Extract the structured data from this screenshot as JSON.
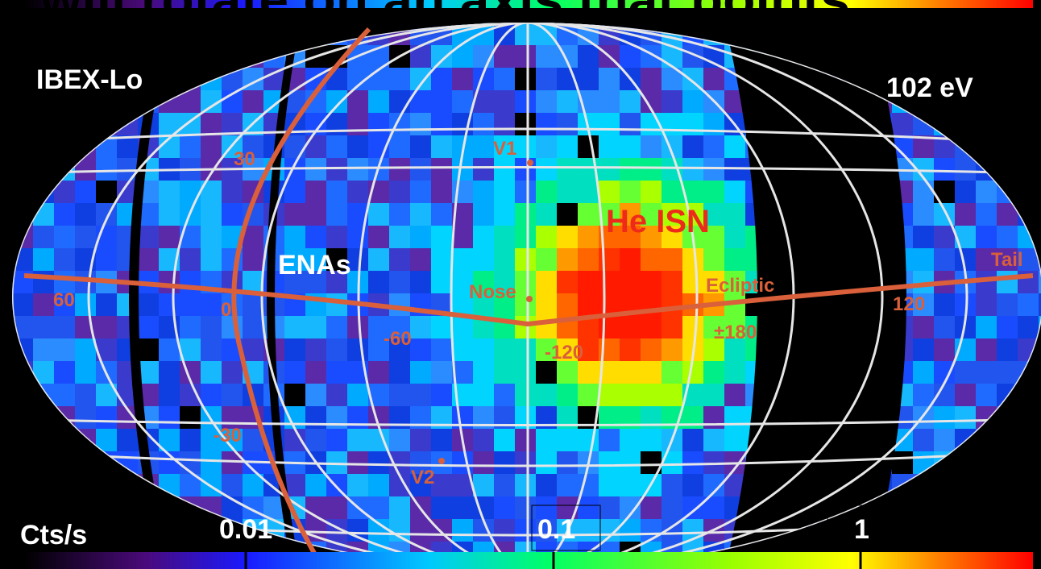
{
  "caption": "e will rotate on an axis that points",
  "map": {
    "instrument": "IBEX-Lo",
    "energy": "102 eV",
    "population": "ENAs",
    "signal": "He ISN",
    "markers": {
      "v1": "V1",
      "v2": "V2",
      "nose": "Nose",
      "ecliptic": "Ecliptic",
      "tail": "Tail"
    },
    "coordinates": {
      "lat_north": "30",
      "lat_south": "-30",
      "lon_60": "60",
      "lon_0": "0",
      "lon_m60": "-60",
      "lon_m120": "-120",
      "lon_180": "±180",
      "lon_120": "120"
    }
  },
  "colorbar": {
    "unit": "Cts/s",
    "labels": [
      "0.01",
      "0.1",
      "1"
    ]
  }
}
